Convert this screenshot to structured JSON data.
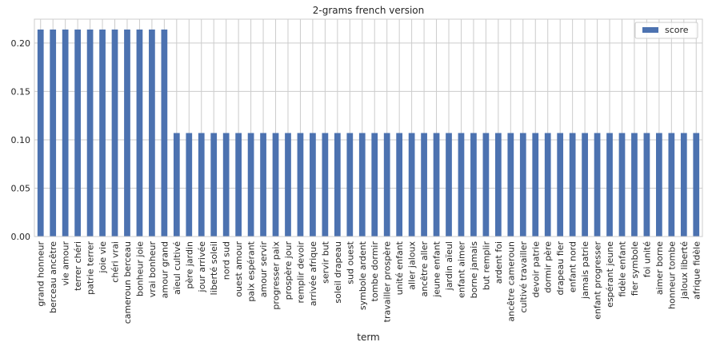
{
  "chart_data": {
    "type": "bar",
    "title": "2-grams french version",
    "xlabel": "term",
    "ylabel": "",
    "ylim": [
      0,
      0.2247
    ],
    "yticks": [
      0.0,
      0.05,
      0.1,
      0.15,
      0.2
    ],
    "ytick_labels": [
      "0.00",
      "0.05",
      "0.10",
      "0.15",
      "0.20"
    ],
    "grid": true,
    "legend_position": "top-right",
    "bar_color": "#4c72b0",
    "grid_color": "#cccccc",
    "series": [
      {
        "name": "score"
      }
    ],
    "categories": [
      "grand honneur",
      "berceau ancêtre",
      "vie amour",
      "terrer chéri",
      "patrie terrer",
      "joie vie",
      "chéri vrai",
      "cameroun berceau",
      "bonheur joie",
      "vrai bonheur",
      "amour grand",
      "aïeul cultivé",
      "père jardin",
      "jour arrivée",
      "liberté soleil",
      "nord sud",
      "ouest amour",
      "paix espérant",
      "amour servir",
      "progresser paix",
      "prospère jour",
      "remplir devoir",
      "arrivée afrique",
      "servir but",
      "soleil drapeau",
      "sud ouest",
      "symbole ardent",
      "tombe dormir",
      "travailler prospère",
      "unité enfant",
      "aller jaloux",
      "ancêtre aller",
      "jeune enfant",
      "jardin aïeul",
      "enfant aimer",
      "borne jamais",
      "but remplir",
      "ardent foi",
      "ancêtre cameroun",
      "cultivé travailler",
      "devoir patrie",
      "dormir père",
      "drapeau fier",
      "enfant nord",
      "jamais patrie",
      "enfant progresser",
      "espérant jeune",
      "fidèle enfant",
      "fier symbole",
      "foi unité",
      "aimer borne",
      "honneur tombe",
      "jaloux liberté",
      "afrique fidèle"
    ],
    "values": [
      0.214,
      0.214,
      0.214,
      0.214,
      0.214,
      0.214,
      0.214,
      0.214,
      0.214,
      0.214,
      0.214,
      0.107,
      0.107,
      0.107,
      0.107,
      0.107,
      0.107,
      0.107,
      0.107,
      0.107,
      0.107,
      0.107,
      0.107,
      0.107,
      0.107,
      0.107,
      0.107,
      0.107,
      0.107,
      0.107,
      0.107,
      0.107,
      0.107,
      0.107,
      0.107,
      0.107,
      0.107,
      0.107,
      0.107,
      0.107,
      0.107,
      0.107,
      0.107,
      0.107,
      0.107,
      0.107,
      0.107,
      0.107,
      0.107,
      0.107,
      0.107,
      0.107,
      0.107,
      0.107
    ]
  }
}
